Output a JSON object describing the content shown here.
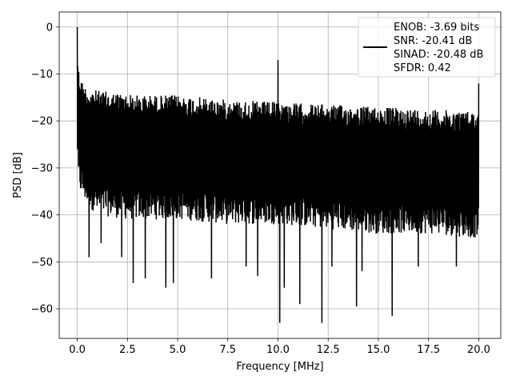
{
  "chart_data": {
    "type": "line",
    "title": "",
    "xlabel": "Frequency [MHz]",
    "ylabel": "PSD [dB]",
    "xlim": [
      -0.9,
      21.1
    ],
    "ylim": [
      -66.3,
      3.2
    ],
    "xticks": [
      0.0,
      2.5,
      5.0,
      7.5,
      10.0,
      12.5,
      15.0,
      17.5,
      20.0
    ],
    "xtick_labels": [
      "0.0",
      "2.5",
      "5.0",
      "7.5",
      "10.0",
      "12.5",
      "15.0",
      "17.5",
      "20.0"
    ],
    "yticks": [
      0,
      -10,
      -20,
      -30,
      -40,
      -50,
      -60
    ],
    "ytick_labels": [
      "0",
      "−10",
      "−20",
      "−30",
      "−40",
      "−50",
      "−60"
    ],
    "grid": true,
    "legend_position": "upper right",
    "legend_lines": [
      "ENOB: -3.69 bits",
      "SNR: -20.41 dB",
      "SINAD: -20.48 dB",
      "SFDR: 0.42"
    ],
    "series": [
      {
        "color": "#000000",
        "style": "noise-floor spectrum",
        "x_range": [
          0.0,
          20.0
        ],
        "upper_envelope": {
          "x": [
            0.0,
            0.02,
            0.05,
            0.1,
            0.2,
            0.3,
            0.5,
            1.0,
            2.0,
            3.0,
            5.0,
            7.5,
            10.0,
            12.5,
            15.0,
            17.5,
            20.0
          ],
          "y": [
            0,
            -5,
            -8,
            -9.5,
            -11,
            -12,
            -13,
            -13.5,
            -14,
            -14.5,
            -14.5,
            -15.5,
            -16,
            -16.5,
            -17,
            -17.5,
            -18
          ]
        },
        "lower_envelope": {
          "x": [
            0.0,
            0.05,
            0.2,
            0.5,
            1.0,
            2.5,
            5.0,
            7.5,
            10.0,
            12.5,
            15.0,
            17.5,
            20.0
          ],
          "y": [
            -26,
            -34,
            -36,
            -38,
            -40,
            -41,
            -41,
            -42,
            -42,
            -43,
            -44,
            -44,
            -45
          ]
        },
        "peaks": [
          {
            "x": 0.0,
            "y": 0
          },
          {
            "x": 10.0,
            "y": -7
          },
          {
            "x": 20.0,
            "y": -12
          }
        ],
        "dips": [
          {
            "x": 0.6,
            "y": -49
          },
          {
            "x": 1.2,
            "y": -46
          },
          {
            "x": 2.2,
            "y": -49
          },
          {
            "x": 2.8,
            "y": -54.5
          },
          {
            "x": 3.4,
            "y": -53.5
          },
          {
            "x": 4.4,
            "y": -55.5
          },
          {
            "x": 4.8,
            "y": -54.5
          },
          {
            "x": 6.7,
            "y": -53.5
          },
          {
            "x": 8.4,
            "y": -51
          },
          {
            "x": 9.0,
            "y": -53
          },
          {
            "x": 10.1,
            "y": -63
          },
          {
            "x": 10.3,
            "y": -55.5
          },
          {
            "x": 11.1,
            "y": -59
          },
          {
            "x": 12.2,
            "y": -63
          },
          {
            "x": 12.7,
            "y": -51
          },
          {
            "x": 13.9,
            "y": -59.5
          },
          {
            "x": 14.2,
            "y": -52
          },
          {
            "x": 15.7,
            "y": -61.5
          },
          {
            "x": 17.0,
            "y": -51
          },
          {
            "x": 18.9,
            "y": -51
          }
        ]
      }
    ]
  }
}
